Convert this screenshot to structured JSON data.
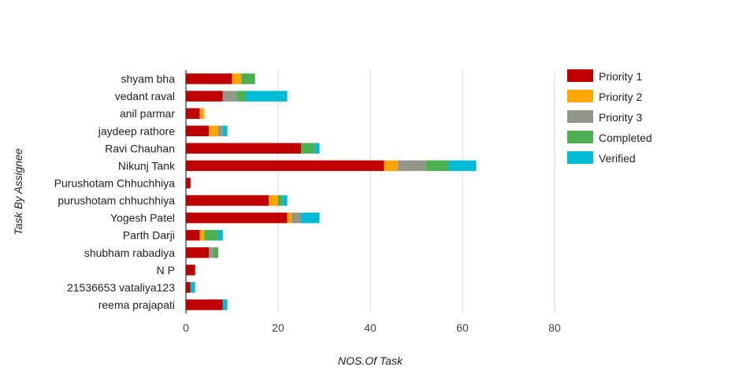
{
  "chart_data": {
    "type": "bar",
    "orientation": "horizontal",
    "stacked": true,
    "xlabel": "NOS.Of Task",
    "ylabel": "Task By Assignee",
    "xlim": [
      0,
      80
    ],
    "xticks": [
      0,
      20,
      40,
      60,
      80
    ],
    "grid": true,
    "legend_position": "right",
    "categories": [
      "shyam bha",
      "vedant raval",
      "anil parmar",
      "jaydeep rathore",
      "Ravi Chauhan",
      "Nikunj Tank",
      "Purushotam Chhuchhiya",
      "purushotam chhuchhiya",
      "Yogesh Patel",
      "Parth Darji",
      "shubham rabadiya",
      "N P",
      "21536653 vataliya123",
      "reema prajapati"
    ],
    "series": [
      {
        "name": "Priority 1",
        "color": "#c00000",
        "values": [
          10,
          8,
          3,
          5,
          25,
          43,
          1,
          18,
          22,
          3,
          5,
          2,
          1,
          8
        ]
      },
      {
        "name": "Priority 2",
        "color": "#ffa500",
        "values": [
          2,
          0,
          1,
          2,
          0,
          3,
          0,
          2,
          1,
          1,
          0,
          0,
          0,
          0
        ]
      },
      {
        "name": "Priority 3",
        "color": "#939789",
        "values": [
          0,
          3,
          0,
          1,
          0,
          6,
          0,
          0,
          2,
          0,
          1,
          0,
          0,
          0
        ]
      },
      {
        "name": "Completed",
        "color": "#4caf50",
        "values": [
          3,
          2,
          0,
          0,
          3,
          5,
          0,
          1,
          0,
          3,
          1,
          0,
          0,
          0
        ]
      },
      {
        "name": "Verified",
        "color": "#00bcd4",
        "values": [
          0,
          9,
          0,
          1,
          1,
          6,
          0,
          1,
          4,
          1,
          0,
          0,
          1,
          1
        ]
      }
    ]
  }
}
